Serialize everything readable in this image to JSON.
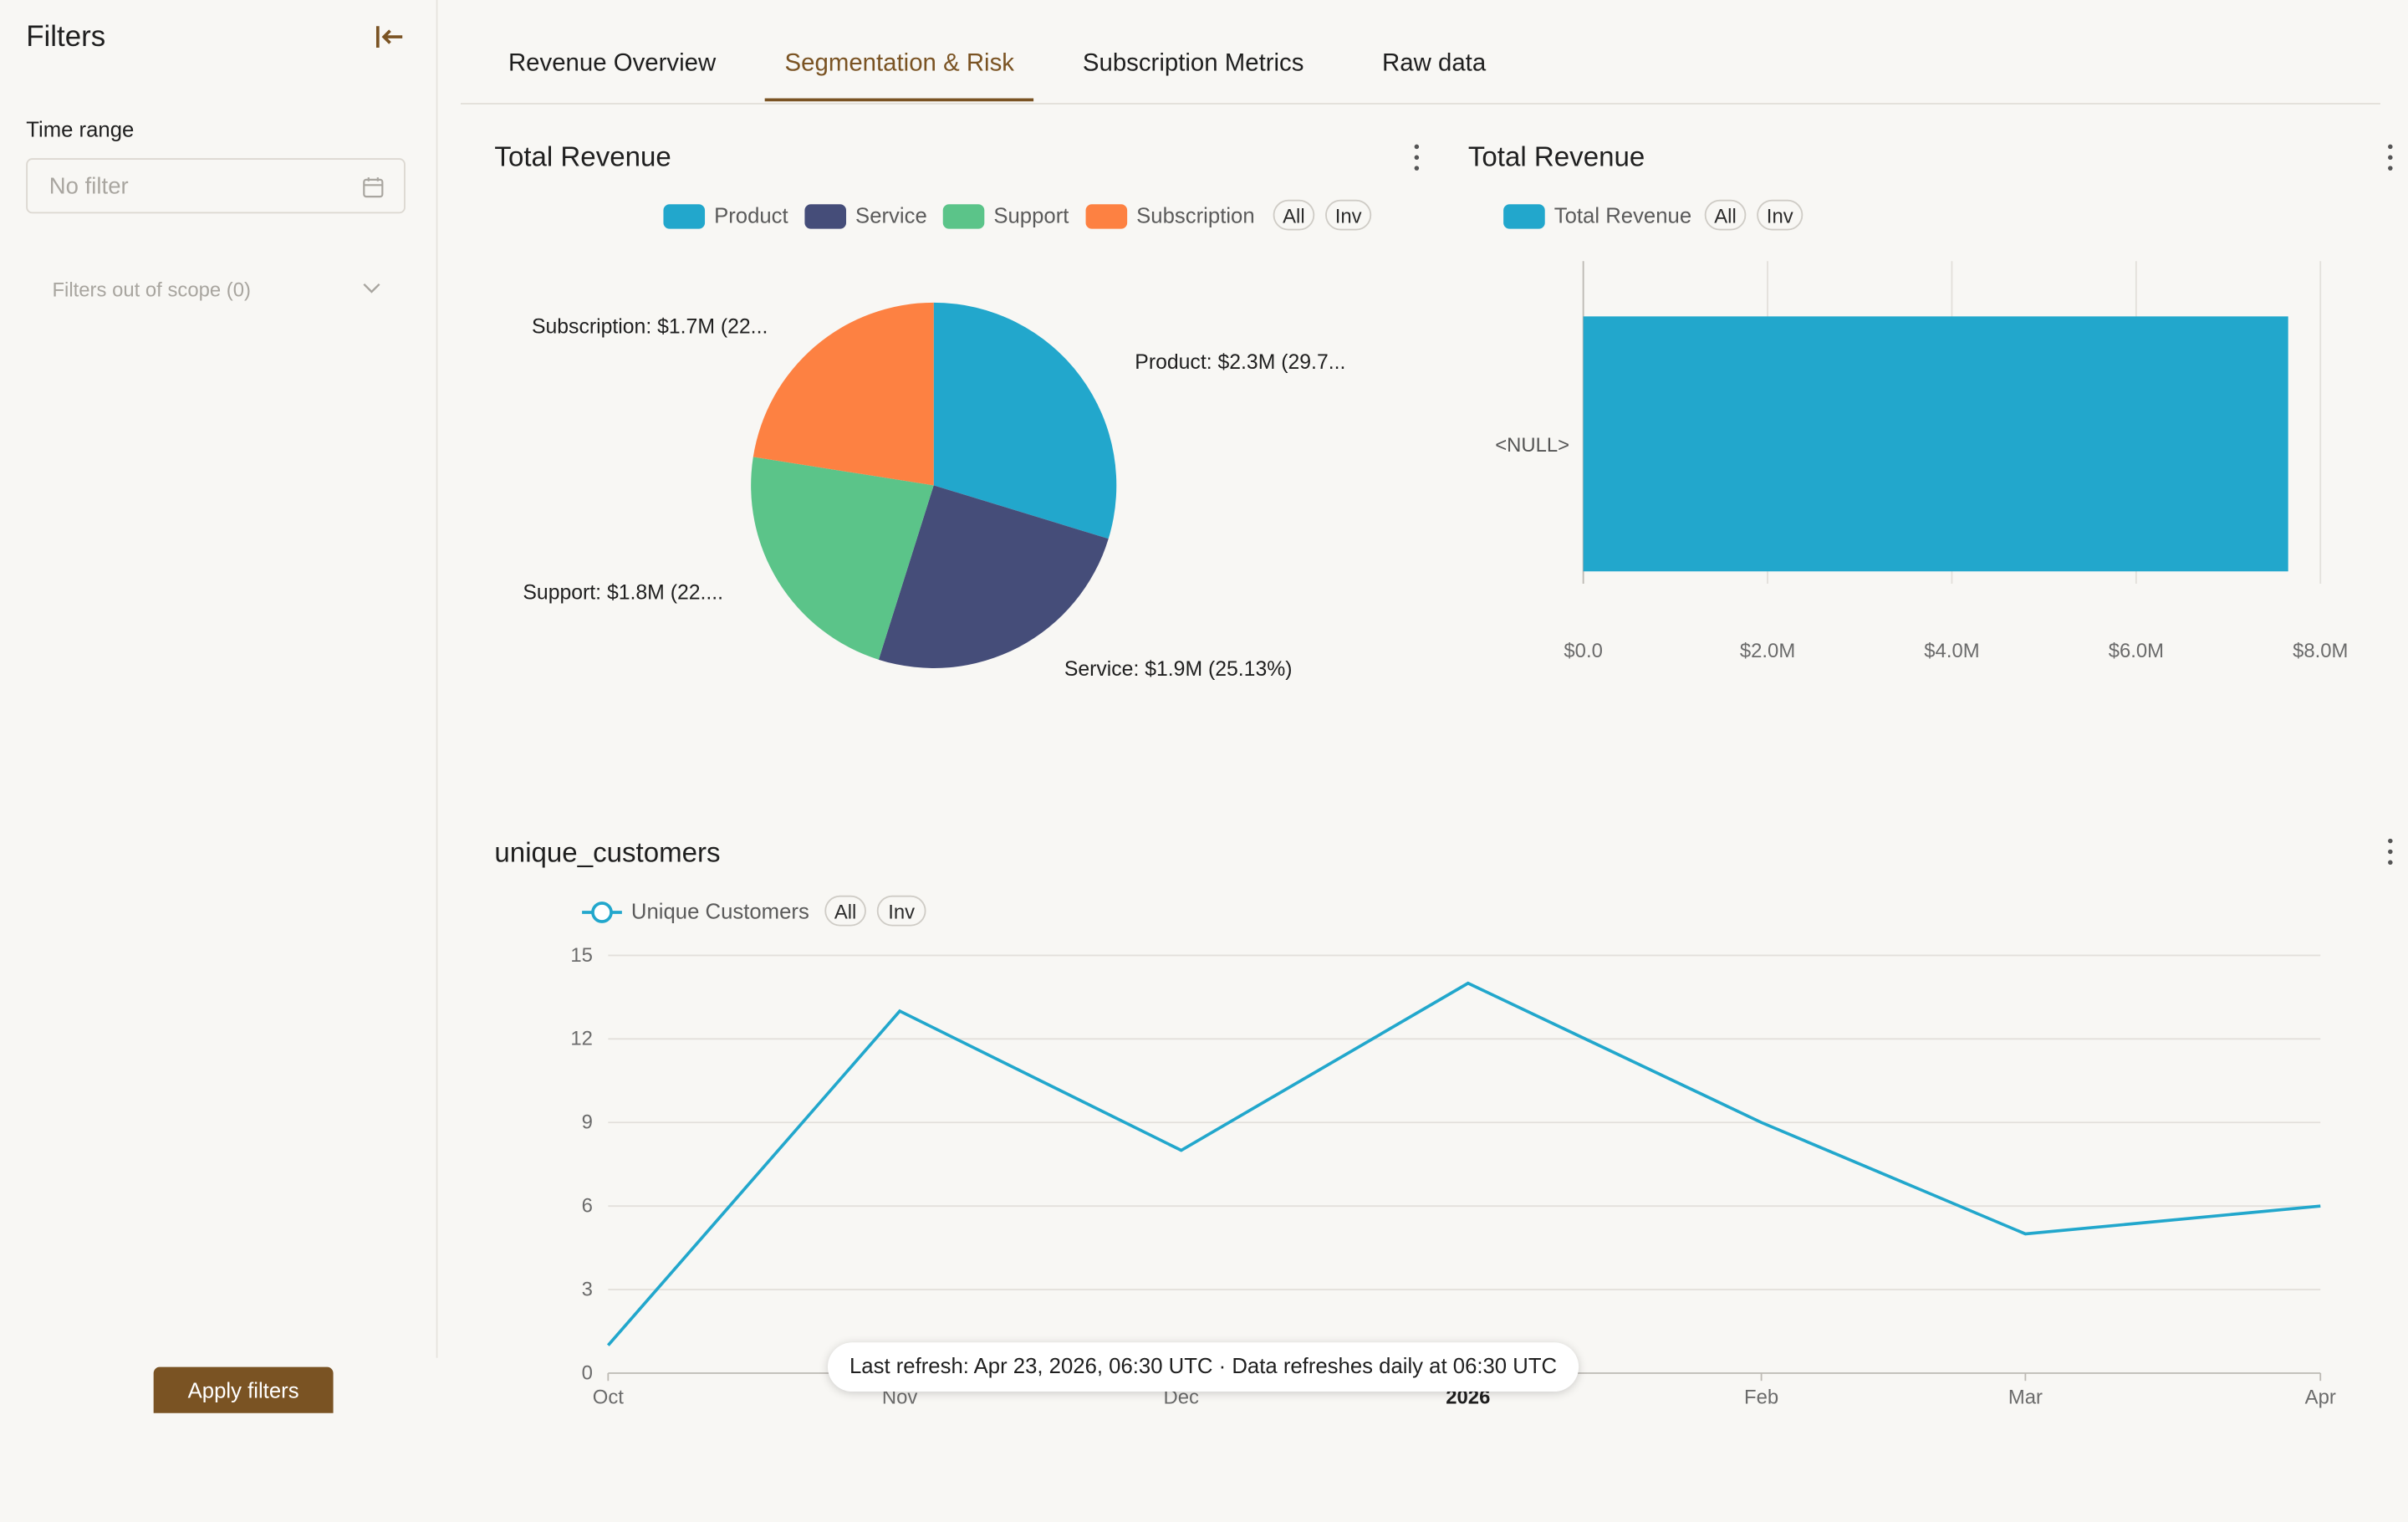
{
  "sidebar": {
    "title": "Filters",
    "time_range_label": "Time range",
    "time_range_placeholder": "No filter",
    "out_of_scope_label": "Filters out of scope (0)",
    "apply_label": "Apply filters"
  },
  "tabs": [
    {
      "label": "Revenue Overview"
    },
    {
      "label": "Segmentation & Risk",
      "active": true
    },
    {
      "label": "Subscription Metrics"
    },
    {
      "label": "Raw data"
    }
  ],
  "legend_controls": {
    "all": "All",
    "inv": "Inv"
  },
  "pie_card": {
    "title": "Total Revenue"
  },
  "bar_card": {
    "title": "Total Revenue"
  },
  "line_card": {
    "title": "unique_customers"
  },
  "toast": "Last refresh: Apr 23, 2026, 06:30 UTC · Data refreshes daily at 06:30 UTC",
  "colors": {
    "product": "#22a7cc",
    "service": "#454d79",
    "support": "#5bc489",
    "subscription": "#fd8142",
    "accent": "#7a5323"
  },
  "chart_data": [
    {
      "type": "pie",
      "title": "Total Revenue",
      "legend": [
        "Product",
        "Service",
        "Support",
        "Subscription"
      ],
      "slices": [
        {
          "name": "Product",
          "value": 2.3,
          "percent": 29.7,
          "label": "Product: $2.3M (29.7..."
        },
        {
          "name": "Service",
          "value": 1.9,
          "percent": 25.13,
          "label": "Service: $1.9M (25.13%)"
        },
        {
          "name": "Support",
          "value": 1.8,
          "percent": 22.6,
          "label": "Support: $1.8M (22...."
        },
        {
          "name": "Subscription",
          "value": 1.7,
          "percent": 22.5,
          "label": "Subscription: $1.7M (22..."
        }
      ]
    },
    {
      "type": "bar",
      "orientation": "horizontal",
      "title": "Total Revenue",
      "legend": [
        "Total Revenue"
      ],
      "categories": [
        "<NULL>"
      ],
      "values": [
        7.65
      ],
      "xlim": [
        0,
        8
      ],
      "xticks": [
        "$0.0",
        "$2.0M",
        "$4.0M",
        "$6.0M",
        "$8.0M"
      ],
      "grid": true
    },
    {
      "type": "line",
      "title": "unique_customers",
      "legend": [
        "Unique Customers"
      ],
      "x": [
        "Oct",
        "Nov",
        "Dec",
        "2026",
        "Feb",
        "Mar",
        "Apr"
      ],
      "series": [
        {
          "name": "Unique Customers",
          "values": [
            1,
            13,
            8,
            14,
            9,
            5,
            6
          ]
        }
      ],
      "ylim": [
        0,
        15
      ],
      "yticks": [
        "0",
        "3",
        "6",
        "9",
        "12",
        "15"
      ],
      "grid": true
    }
  ]
}
